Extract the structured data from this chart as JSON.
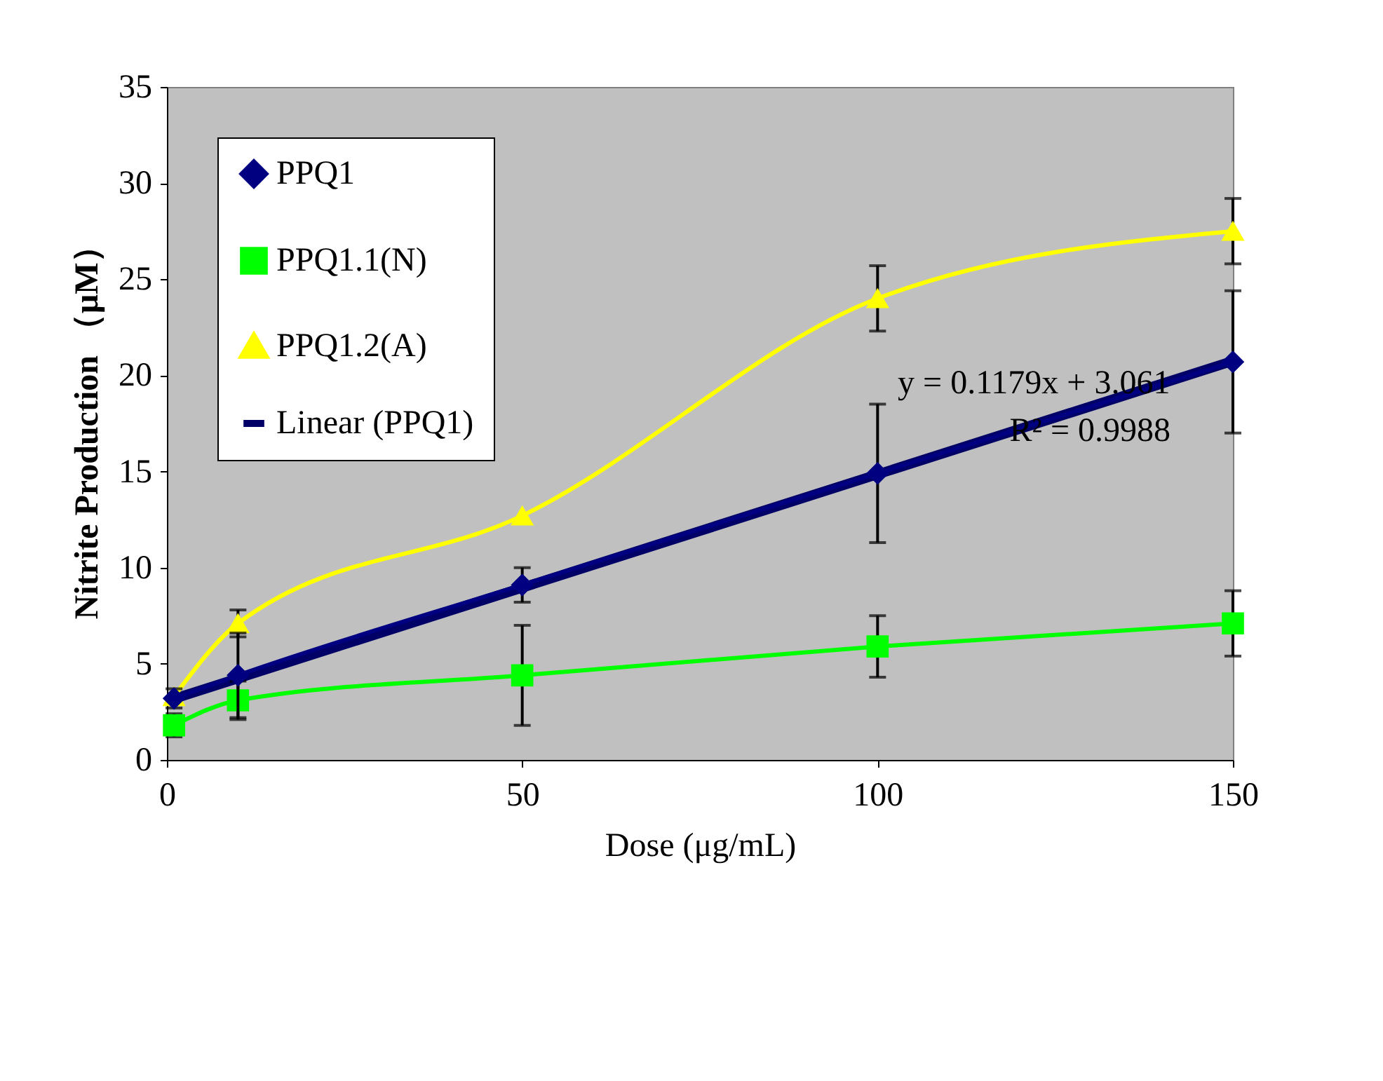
{
  "chart_data": {
    "type": "line",
    "xlabel": "Dose (μg/mL)",
    "ylabel": "Nitrite Production （μM）",
    "x": [
      1,
      10,
      50,
      100,
      150
    ],
    "xlim": [
      0,
      150
    ],
    "xticks": [
      0,
      50,
      100,
      150
    ],
    "ylim": [
      0,
      35
    ],
    "yticks": [
      0,
      5,
      10,
      15,
      20,
      25,
      30,
      35
    ],
    "grid": false,
    "legend": "top left",
    "line_style": "solid",
    "series": [
      {
        "name": "PPQ1",
        "color": "#000080",
        "marker": "diamond",
        "values": [
          3.2,
          4.4,
          9.1,
          14.9,
          20.7
        ],
        "errors": [
          0.5,
          2.2,
          0.9,
          3.6,
          3.7
        ]
      },
      {
        "name": "PPQ1.1(N)",
        "color": "#00ff00",
        "marker": "square",
        "values": [
          1.8,
          3.1,
          4.4,
          5.9,
          7.1
        ],
        "errors": [
          0.6,
          1.0,
          2.6,
          1.6,
          1.7
        ]
      },
      {
        "name": "PPQ1.2(A)",
        "color": "#ffff00",
        "marker": "triangle",
        "values": [
          3.3,
          7.1,
          12.7,
          24.0,
          27.5
        ],
        "errors": [
          null,
          0.7,
          null,
          1.7,
          1.7
        ]
      },
      {
        "name": "Linear (PPQ1)",
        "type": "line",
        "color": "#000066",
        "marker": "none",
        "x": [
          1,
          150
        ],
        "values": [
          3.18,
          20.75
        ]
      }
    ],
    "annotations": [
      {
        "text": "y = 0.1179x + 3.061",
        "x": 122,
        "y": 17.4
      },
      "R² = 0.9988"
    ]
  }
}
